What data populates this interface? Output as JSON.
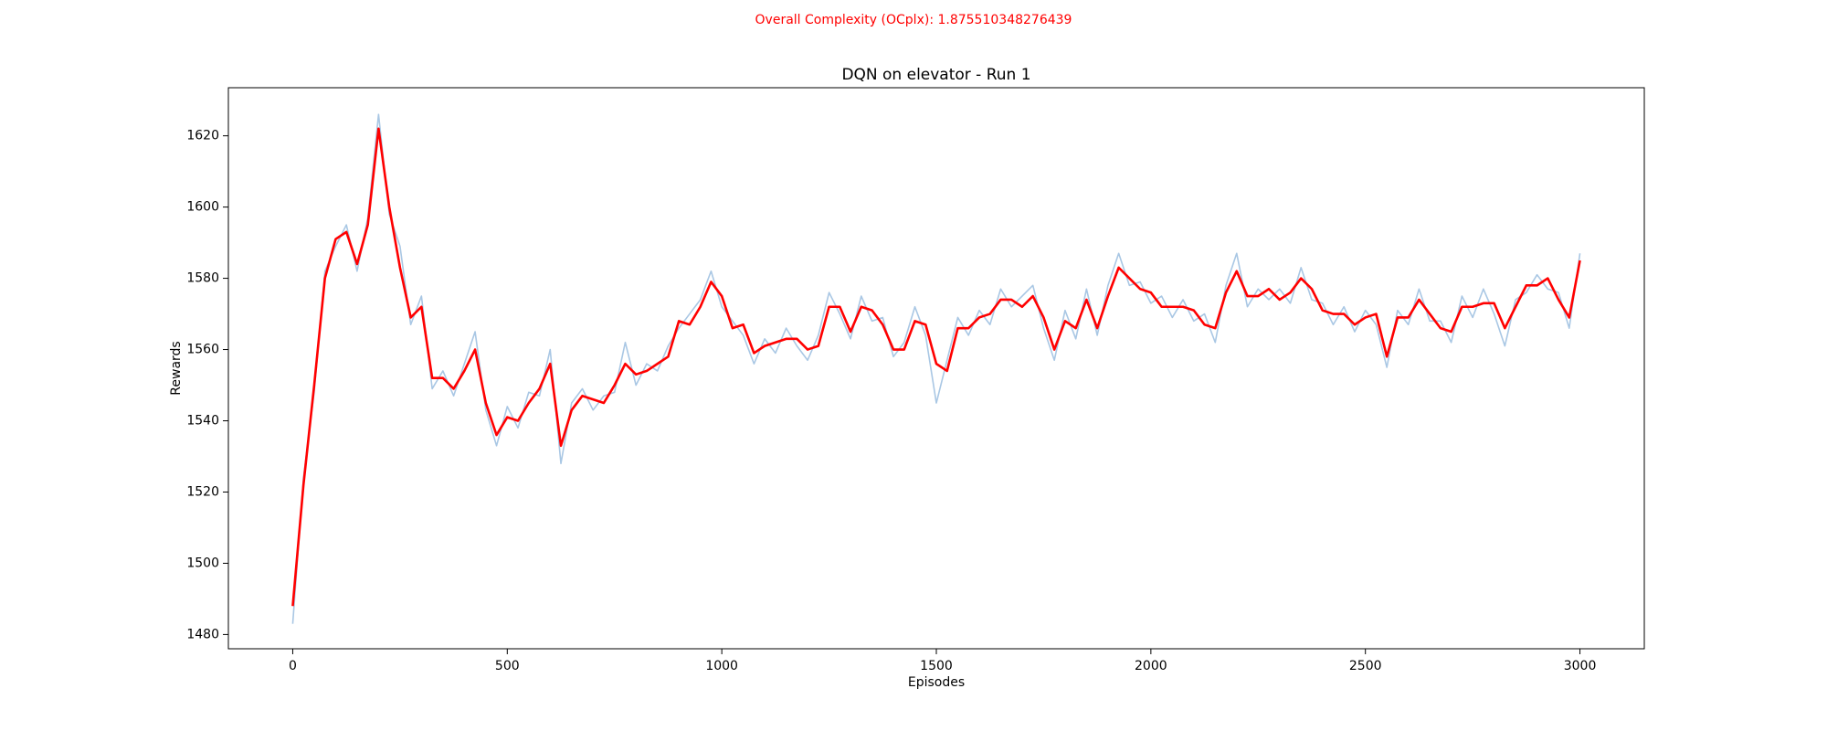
{
  "chart_data": {
    "type": "line",
    "suptitle": "Overall Complexity (OCplx): 1.875510348276439",
    "title": "DQN on elevator - Run 1",
    "xlabel": "Episodes",
    "ylabel": "Rewards",
    "x": [
      0,
      25,
      50,
      75,
      100,
      125,
      150,
      175,
      200,
      225,
      250,
      275,
      300,
      325,
      350,
      375,
      400,
      425,
      450,
      475,
      500,
      525,
      550,
      575,
      600,
      625,
      650,
      675,
      700,
      725,
      750,
      775,
      800,
      825,
      850,
      875,
      900,
      925,
      950,
      975,
      1000,
      1025,
      1050,
      1075,
      1100,
      1125,
      1150,
      1175,
      1200,
      1225,
      1250,
      1275,
      1300,
      1325,
      1350,
      1375,
      1400,
      1425,
      1450,
      1475,
      1500,
      1525,
      1550,
      1575,
      1600,
      1625,
      1650,
      1675,
      1700,
      1725,
      1750,
      1775,
      1800,
      1825,
      1850,
      1875,
      1900,
      1925,
      1950,
      1975,
      2000,
      2025,
      2050,
      2075,
      2100,
      2125,
      2150,
      2175,
      2200,
      2225,
      2250,
      2275,
      2300,
      2325,
      2350,
      2375,
      2400,
      2425,
      2450,
      2475,
      2500,
      2525,
      2550,
      2575,
      2600,
      2625,
      2650,
      2675,
      2700,
      2725,
      2750,
      2775,
      2800,
      2825,
      2850,
      2875,
      2900,
      2925,
      2950,
      2975,
      3000
    ],
    "series": [
      {
        "color": "#a9c7e4",
        "values": [
          1483,
          1524,
          1548,
          1582,
          1589,
          1595,
          1582,
          1597,
          1626,
          1598,
          1589,
          1567,
          1575,
          1549,
          1554,
          1547,
          1556,
          1565,
          1543,
          1533,
          1544,
          1538,
          1548,
          1547,
          1560,
          1528,
          1545,
          1549,
          1543,
          1547,
          1548,
          1562,
          1550,
          1556,
          1554,
          1561,
          1566,
          1570,
          1574,
          1582,
          1572,
          1568,
          1564,
          1556,
          1563,
          1559,
          1566,
          1561,
          1557,
          1564,
          1576,
          1570,
          1563,
          1575,
          1568,
          1569,
          1558,
          1562,
          1572,
          1564,
          1545,
          1557,
          1569,
          1564,
          1571,
          1567,
          1577,
          1572,
          1575,
          1578,
          1566,
          1557,
          1571,
          1563,
          1577,
          1564,
          1578,
          1587,
          1578,
          1579,
          1573,
          1575,
          1569,
          1574,
          1568,
          1570,
          1562,
          1578,
          1587,
          1572,
          1577,
          1574,
          1577,
          1573,
          1583,
          1574,
          1573,
          1567,
          1572,
          1565,
          1571,
          1567,
          1555,
          1571,
          1567,
          1577,
          1568,
          1568,
          1562,
          1575,
          1569,
          1577,
          1570,
          1561,
          1574,
          1576,
          1581,
          1577,
          1576,
          1566,
          1587
        ]
      },
      {
        "color": "#ff0000",
        "values": [
          1488,
          1522,
          1550,
          1580,
          1591,
          1593,
          1584,
          1595,
          1622,
          1600,
          1583,
          1569,
          1572,
          1552,
          1552,
          1549,
          1554,
          1560,
          1545,
          1536,
          1541,
          1540,
          1545,
          1549,
          1556,
          1533,
          1543,
          1547,
          1546,
          1545,
          1550,
          1556,
          1553,
          1554,
          1556,
          1558,
          1568,
          1567,
          1572,
          1579,
          1575,
          1566,
          1567,
          1559,
          1561,
          1562,
          1563,
          1563,
          1560,
          1561,
          1572,
          1572,
          1565,
          1572,
          1571,
          1567,
          1560,
          1560,
          1568,
          1567,
          1556,
          1554,
          1566,
          1566,
          1569,
          1570,
          1574,
          1574,
          1572,
          1575,
          1569,
          1560,
          1568,
          1566,
          1574,
          1566,
          1575,
          1583,
          1580,
          1577,
          1576,
          1572,
          1572,
          1572,
          1571,
          1567,
          1566,
          1576,
          1582,
          1575,
          1575,
          1577,
          1574,
          1576,
          1580,
          1577,
          1571,
          1570,
          1570,
          1567,
          1569,
          1570,
          1558,
          1569,
          1569,
          1574,
          1570,
          1566,
          1565,
          1572,
          1572,
          1573,
          1573,
          1566,
          1572,
          1578,
          1578,
          1580,
          1574,
          1569,
          1585
        ]
      }
    ],
    "xlim": [
      -150,
      3150
    ],
    "ylim": [
      1476,
      1633.5
    ],
    "xticks": [
      0,
      500,
      1000,
      1500,
      2000,
      2500,
      3000
    ],
    "yticks": [
      1480,
      1500,
      1520,
      1540,
      1560,
      1580,
      1600,
      1620
    ],
    "grid": false
  }
}
